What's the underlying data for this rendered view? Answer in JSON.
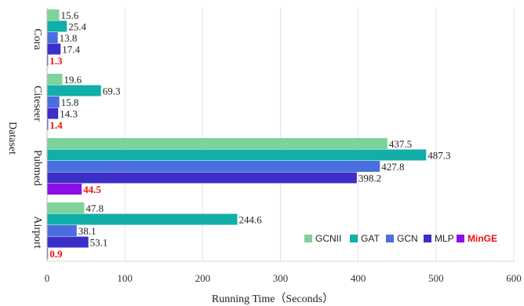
{
  "chart_data": {
    "type": "bar",
    "orientation": "horizontal",
    "title": "",
    "xlabel": "Running Time（Seconds）",
    "ylabel": "Dataset",
    "xlim": [
      0,
      600
    ],
    "xticks": [
      0,
      100,
      200,
      300,
      400,
      500,
      600
    ],
    "grid": "vertical",
    "legend_position": "bottom-right",
    "categories": [
      "Cora",
      "Citeseer",
      "Pubmed",
      "Airport"
    ],
    "series": [
      {
        "name": "GCNII",
        "color": "#7dd39a",
        "values": [
          15.6,
          19.6,
          437.5,
          47.8
        ],
        "labels": [
          "15.6",
          "19.6",
          "437.5",
          "47.8"
        ],
        "highlight": false
      },
      {
        "name": "GAT",
        "color": "#12aea8",
        "values": [
          25.4,
          69.3,
          487.3,
          244.6
        ],
        "labels": [
          "25.4",
          "69.3",
          "487.3",
          "244.6"
        ],
        "highlight": false
      },
      {
        "name": "GCN",
        "color": "#4a6ee0",
        "values": [
          13.8,
          15.8,
          427.8,
          38.1
        ],
        "labels": [
          "13.8",
          "15.8",
          "427.8",
          "38.1"
        ],
        "highlight": false
      },
      {
        "name": "MLP",
        "color": "#3b2fc8",
        "values": [
          17.4,
          14.3,
          398.2,
          53.1
        ],
        "labels": [
          "17.4",
          "14.3",
          "398.2",
          "53.1"
        ],
        "highlight": false
      },
      {
        "name": "MinGE",
        "color": "#8b10e8",
        "values": [
          1.3,
          1.4,
          44.5,
          0.9
        ],
        "labels": [
          "1.3",
          "1.4",
          "44.5",
          "0.9"
        ],
        "highlight": true
      }
    ]
  }
}
